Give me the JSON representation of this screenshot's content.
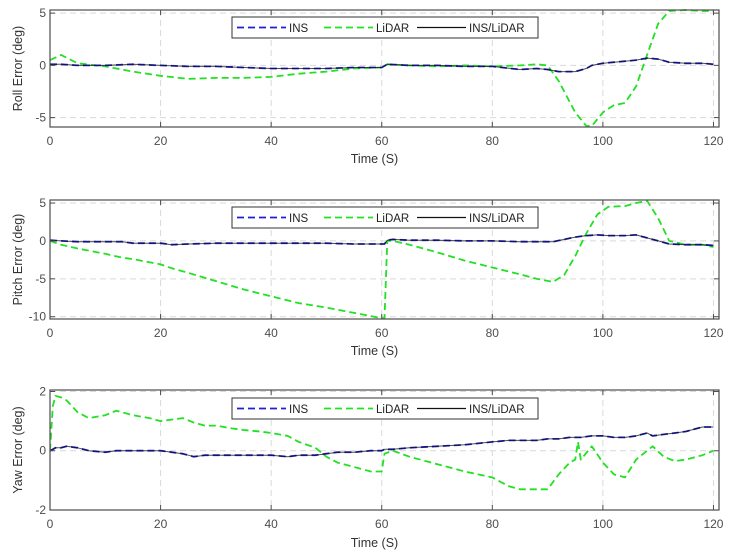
{
  "figure": {
    "legend": [
      "INS",
      "LiDAR",
      "INS/LiDAR"
    ],
    "xlabel": "Time (S)"
  },
  "colors": {
    "INS": "#1f1fd6",
    "LiDAR": "#22e022",
    "INS/LiDAR": "#111111",
    "grid": "#d9d9d9",
    "axes": "#4d4d4d"
  },
  "chart_data": [
    {
      "type": "line",
      "title": "",
      "xlabel": "Time (S)",
      "ylabel": "Roll Error (deg)",
      "xlim": [
        0,
        121
      ],
      "ylim": [
        -5.9,
        5.3
      ],
      "xticks": [
        0,
        20,
        40,
        60,
        80,
        100,
        120
      ],
      "yticks": [
        -5,
        0,
        5
      ],
      "grid": true,
      "legend_position": "top-center",
      "x": [
        0,
        2,
        5,
        10,
        15,
        20,
        25,
        30,
        35,
        40,
        45,
        50,
        55,
        60,
        61,
        65,
        70,
        75,
        80,
        85,
        88,
        90,
        92,
        95,
        97,
        98,
        100,
        102,
        104,
        106,
        108,
        110,
        112,
        115,
        118,
        120
      ],
      "series": [
        {
          "name": "INS",
          "style": "dashed",
          "values": [
            0.1,
            0.1,
            0.0,
            0.0,
            0.1,
            0.0,
            -0.1,
            -0.1,
            -0.2,
            -0.3,
            -0.3,
            -0.3,
            -0.2,
            -0.2,
            0.1,
            0.0,
            0.0,
            -0.1,
            -0.1,
            -0.4,
            -0.3,
            -0.4,
            -0.6,
            -0.6,
            -0.3,
            0.0,
            0.2,
            0.3,
            0.4,
            0.5,
            0.7,
            0.6,
            0.3,
            0.2,
            0.2,
            0.1
          ]
        },
        {
          "name": "LiDAR",
          "style": "dashed",
          "values": [
            0.5,
            1.0,
            0.2,
            -0.1,
            -0.6,
            -1.0,
            -1.3,
            -1.2,
            -1.2,
            -1.1,
            -0.8,
            -0.6,
            -0.3,
            -0.2,
            0.1,
            0.0,
            -0.1,
            0.0,
            -0.1,
            0.0,
            0.1,
            0.0,
            -1.5,
            -4.5,
            -5.8,
            -5.8,
            -4.5,
            -3.8,
            -3.6,
            -2.0,
            1.0,
            4.0,
            5.2,
            5.3,
            5.2,
            5.2
          ]
        },
        {
          "name": "INS/LiDAR",
          "style": "solid",
          "values": [
            0.1,
            0.1,
            0.0,
            0.0,
            0.1,
            0.0,
            -0.1,
            -0.1,
            -0.2,
            -0.3,
            -0.3,
            -0.3,
            -0.2,
            -0.2,
            0.1,
            0.0,
            0.0,
            -0.1,
            -0.1,
            -0.4,
            -0.3,
            -0.4,
            -0.6,
            -0.6,
            -0.3,
            0.0,
            0.2,
            0.3,
            0.4,
            0.5,
            0.7,
            0.6,
            0.3,
            0.2,
            0.2,
            0.1
          ]
        }
      ]
    },
    {
      "type": "line",
      "title": "",
      "xlabel": "Time (S)",
      "ylabel": "Pitch Error (deg)",
      "xlim": [
        0,
        121
      ],
      "ylim": [
        -10.3,
        5.4
      ],
      "xticks": [
        0,
        20,
        40,
        60,
        80,
        100,
        120
      ],
      "yticks": [
        -10,
        -5,
        0,
        5
      ],
      "grid": true,
      "legend_position": "top-center",
      "x": [
        0,
        2,
        5,
        10,
        13,
        15,
        20,
        22,
        25,
        30,
        35,
        40,
        45,
        50,
        55,
        60,
        60.5,
        61,
        62,
        65,
        70,
        75,
        80,
        85,
        88,
        91,
        93,
        95,
        97,
        99,
        101,
        104,
        106,
        108,
        110,
        112,
        115,
        118,
        120
      ],
      "series": [
        {
          "name": "INS",
          "style": "dashed",
          "values": [
            0.1,
            0.0,
            -0.1,
            -0.1,
            -0.1,
            -0.3,
            -0.3,
            -0.5,
            -0.4,
            -0.3,
            -0.3,
            -0.3,
            -0.3,
            -0.3,
            -0.4,
            -0.4,
            -0.4,
            0.1,
            0.2,
            0.1,
            0.1,
            0.0,
            0.0,
            -0.1,
            -0.1,
            -0.1,
            0.2,
            0.5,
            0.7,
            0.8,
            0.7,
            0.7,
            0.8,
            0.4,
            0.0,
            -0.4,
            -0.5,
            -0.5,
            -0.6
          ]
        },
        {
          "name": "LiDAR",
          "style": "dashed",
          "values": [
            0.0,
            -0.5,
            -1.0,
            -1.7,
            -2.2,
            -2.4,
            -3.1,
            -3.6,
            -4.2,
            -5.3,
            -6.4,
            -7.3,
            -8.2,
            -8.8,
            -9.5,
            -10.2,
            -10.2,
            0.0,
            0.0,
            -0.5,
            -1.5,
            -2.6,
            -3.5,
            -4.4,
            -5.0,
            -5.4,
            -4.5,
            -2.0,
            1.0,
            3.5,
            4.5,
            4.6,
            5.0,
            5.3,
            3.0,
            0.0,
            -0.5,
            -0.5,
            -0.8
          ]
        },
        {
          "name": "INS/LiDAR",
          "style": "solid",
          "values": [
            0.1,
            0.0,
            -0.1,
            -0.1,
            -0.1,
            -0.3,
            -0.3,
            -0.5,
            -0.4,
            -0.3,
            -0.3,
            -0.3,
            -0.3,
            -0.3,
            -0.4,
            -0.4,
            -0.4,
            0.1,
            0.2,
            0.1,
            0.1,
            0.0,
            0.0,
            -0.1,
            -0.1,
            -0.1,
            0.2,
            0.5,
            0.7,
            0.8,
            0.7,
            0.7,
            0.8,
            0.4,
            0.0,
            -0.4,
            -0.5,
            -0.5,
            -0.6
          ]
        }
      ]
    },
    {
      "type": "line",
      "title": "",
      "xlabel": "Time (S)",
      "ylabel": "Yaw Error (deg)",
      "xlim": [
        0,
        121
      ],
      "ylim": [
        -2,
        2.05
      ],
      "xticks": [
        0,
        20,
        40,
        60,
        80,
        100,
        120
      ],
      "yticks": [
        -2,
        0,
        2
      ],
      "grid": true,
      "legend_position": "top-center",
      "x": [
        0,
        0.5,
        1,
        2,
        3,
        5,
        7,
        10,
        12,
        15,
        18,
        20,
        22,
        24,
        26,
        28,
        30,
        33,
        35,
        38,
        40,
        43,
        45,
        48,
        50,
        52,
        55,
        58,
        60,
        60.5,
        62,
        65,
        70,
        75,
        80,
        83,
        85,
        88,
        90,
        92,
        94,
        95,
        95.5,
        96,
        98,
        100,
        102,
        104,
        106,
        108,
        109,
        111,
        113,
        115,
        118,
        120
      ],
      "series": [
        {
          "name": "INS",
          "style": "dashed",
          "values": [
            0.0,
            0.05,
            0.1,
            0.1,
            0.15,
            0.1,
            0.0,
            -0.05,
            0.0,
            0.0,
            0.0,
            0.0,
            -0.05,
            -0.1,
            -0.2,
            -0.15,
            -0.15,
            -0.15,
            -0.15,
            -0.15,
            -0.15,
            -0.2,
            -0.15,
            -0.15,
            -0.1,
            -0.05,
            -0.05,
            0.0,
            0.0,
            0.05,
            0.05,
            0.1,
            0.15,
            0.2,
            0.3,
            0.35,
            0.35,
            0.35,
            0.4,
            0.4,
            0.45,
            0.45,
            0.45,
            0.45,
            0.5,
            0.5,
            0.45,
            0.45,
            0.5,
            0.6,
            0.5,
            0.55,
            0.6,
            0.65,
            0.8,
            0.8
          ]
        },
        {
          "name": "LiDAR",
          "style": "dashed",
          "values": [
            0.0,
            1.5,
            1.85,
            1.8,
            1.7,
            1.3,
            1.1,
            1.2,
            1.35,
            1.2,
            1.1,
            1.0,
            1.05,
            1.1,
            0.95,
            0.85,
            0.85,
            0.75,
            0.7,
            0.65,
            0.6,
            0.5,
            0.3,
            0.1,
            -0.2,
            -0.4,
            -0.55,
            -0.7,
            -0.7,
            -0.1,
            0.0,
            -0.2,
            -0.45,
            -0.7,
            -0.9,
            -1.2,
            -1.3,
            -1.3,
            -1.3,
            -0.8,
            -0.4,
            -0.3,
            0.3,
            -0.3,
            0.15,
            -0.4,
            -0.8,
            -0.9,
            -0.3,
            0.0,
            0.15,
            -0.2,
            -0.35,
            -0.3,
            -0.15,
            0.0
          ]
        },
        {
          "name": "INS/LiDAR",
          "style": "solid",
          "values": [
            0.0,
            0.05,
            0.1,
            0.1,
            0.15,
            0.1,
            0.0,
            -0.05,
            0.0,
            0.0,
            0.0,
            0.0,
            -0.05,
            -0.1,
            -0.2,
            -0.15,
            -0.15,
            -0.15,
            -0.15,
            -0.15,
            -0.15,
            -0.2,
            -0.15,
            -0.15,
            -0.1,
            -0.05,
            -0.05,
            0.0,
            0.0,
            0.05,
            0.05,
            0.1,
            0.15,
            0.2,
            0.3,
            0.35,
            0.35,
            0.35,
            0.4,
            0.4,
            0.45,
            0.45,
            0.45,
            0.45,
            0.5,
            0.5,
            0.45,
            0.45,
            0.5,
            0.6,
            0.5,
            0.55,
            0.6,
            0.65,
            0.8,
            0.8
          ]
        }
      ]
    }
  ]
}
